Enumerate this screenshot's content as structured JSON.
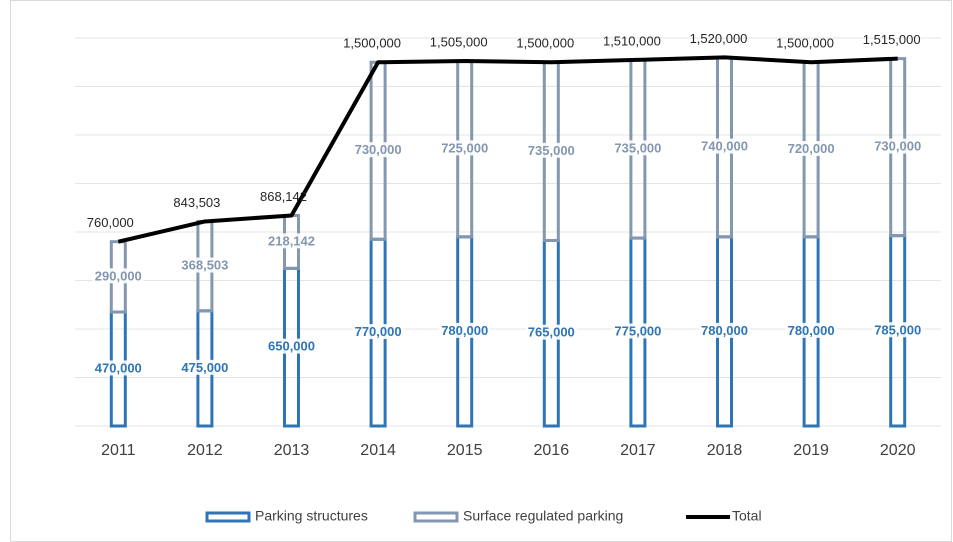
{
  "chart_data": {
    "type": "stacked_bar_line",
    "categories": [
      "2011",
      "2012",
      "2013",
      "2014",
      "2015",
      "2016",
      "2017",
      "2018",
      "2019",
      "2020"
    ],
    "series": [
      {
        "name": "Parking structures",
        "color": "#2e75b6",
        "values": [
          470000,
          475000,
          650000,
          770000,
          780000,
          765000,
          775000,
          780000,
          780000,
          785000
        ],
        "value_labels": [
          "470,000",
          "475,000",
          "650,000",
          "770,000",
          "780,000",
          "765,000",
          "775,000",
          "780,000",
          "780,000",
          "785,000"
        ]
      },
      {
        "name": "Surface regulated parking",
        "color": "#8497b0",
        "values": [
          290000,
          368503,
          218142,
          730000,
          725000,
          735000,
          735000,
          740000,
          720000,
          730000
        ],
        "value_labels": [
          "290,000",
          "368,503",
          "218,142",
          "730,000",
          "725,000",
          "735,000",
          "735,000",
          "740,000",
          "720,000",
          "730,000"
        ]
      },
      {
        "name": "Total",
        "color": "#000000",
        "type": "line",
        "values": [
          760000,
          843503,
          868142,
          1500000,
          1505000,
          1500000,
          1510000,
          1520000,
          1500000,
          1515000
        ],
        "value_labels": [
          "760,000",
          "843,503",
          "868,142",
          "1,500,000",
          "1,505,000",
          "1,500,000",
          "1,510,000",
          "1,520,000",
          "1,500,000",
          "1,515,000"
        ]
      }
    ],
    "ylim": [
      0,
      1600000
    ],
    "yticks": [
      0,
      200000,
      400000,
      600000,
      800000,
      1000000,
      1200000,
      1400000,
      1600000
    ],
    "grid": true,
    "legend": "bottom"
  }
}
